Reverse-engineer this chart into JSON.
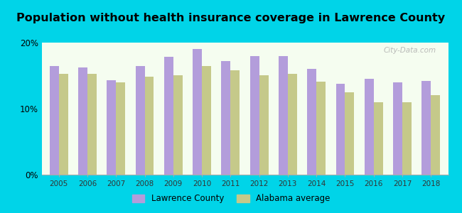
{
  "title": "Population without health insurance coverage in Lawrence County",
  "years": [
    2005,
    2006,
    2007,
    2008,
    2009,
    2010,
    2011,
    2012,
    2013,
    2014,
    2015,
    2016,
    2017,
    2018
  ],
  "lawrence_county": [
    16.5,
    16.2,
    14.3,
    16.5,
    17.8,
    19.0,
    17.2,
    18.0,
    18.0,
    16.0,
    13.8,
    14.5,
    14.0,
    14.2
  ],
  "alabama_avg": [
    15.3,
    15.3,
    14.0,
    14.8,
    15.1,
    16.5,
    15.8,
    15.1,
    15.3,
    14.1,
    12.5,
    11.0,
    11.0,
    12.0
  ],
  "bar_color_lawrence": "#b39ddb",
  "bar_color_alabama": "#c5c98a",
  "background_outer": "#00d4e8",
  "background_plot": "#f5fdf0",
  "ylim": [
    0,
    20
  ],
  "yticks": [
    0,
    10,
    20
  ],
  "legend_lawrence": "Lawrence County",
  "legend_alabama": "Alabama average",
  "title_fontsize": 11.5,
  "bar_width": 0.32
}
